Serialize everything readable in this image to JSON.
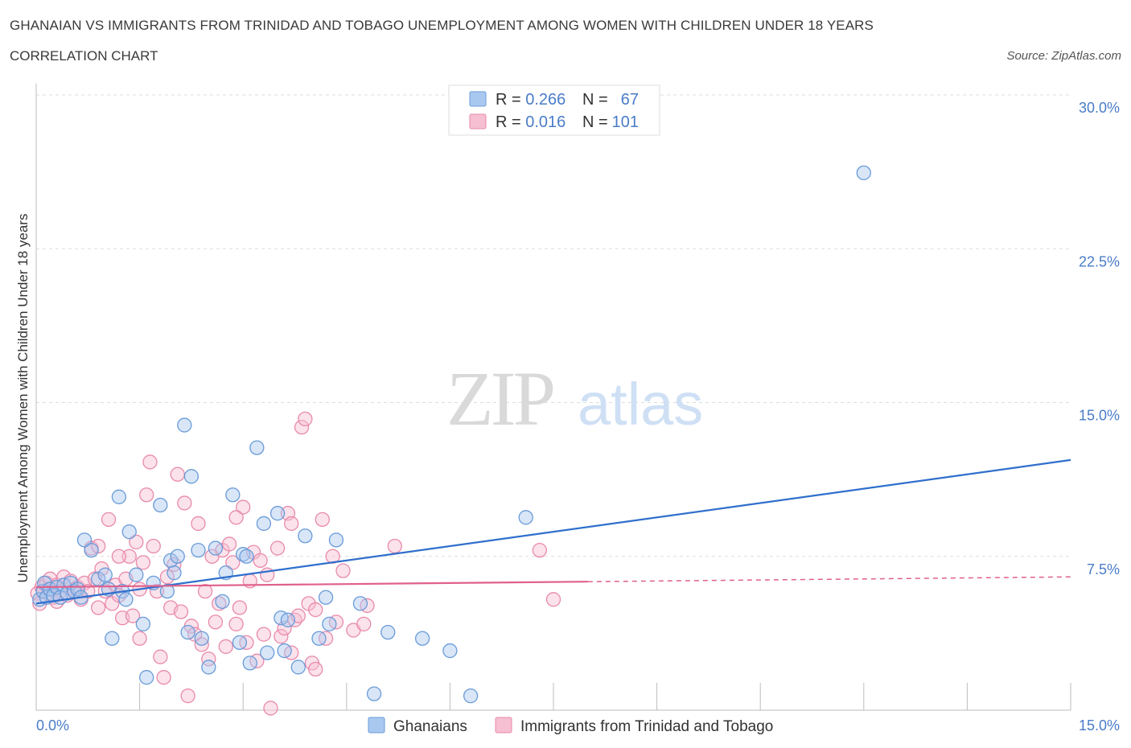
{
  "header": {
    "title": "GHANAIAN VS IMMIGRANTS FROM TRINIDAD AND TOBAGO UNEMPLOYMENT AMONG WOMEN WITH CHILDREN UNDER 18 YEARS",
    "subtitle": "CORRELATION CHART",
    "source": "Source: ZipAtlas.com"
  },
  "watermark": {
    "zip": "ZIP",
    "atlas": "atlas"
  },
  "colors": {
    "ghanaians_fill": "#a9c8f0",
    "ghanaians_stroke": "#6a9bd8",
    "ghanaians_line": "#2f6fcc",
    "trinidad_fill": "#f6bfd2",
    "trinidad_stroke": "#e98aab",
    "trinidad_line": "#e0608c",
    "axis_text": "#4a7cc9"
  },
  "chart_data": {
    "type": "scatter",
    "ylabel": "Unemployment Among Women with Children Under 18 years",
    "xlim": [
      0,
      15
    ],
    "ylim": [
      0,
      30
    ],
    "x_tick_labels": [
      "0.0%",
      "15.0%"
    ],
    "y_ticks": [
      7.5,
      15.0,
      22.5,
      30.0
    ],
    "y_tick_labels": [
      "7.5%",
      "15.0%",
      "22.5%",
      "30.0%"
    ],
    "grid": true,
    "legend": {
      "placement": "top-center",
      "rows": [
        {
          "r_label": "R = ",
          "r_value": "0.266",
          "n_label": "N = ",
          "n_value": "67"
        },
        {
          "r_label": "R = ",
          "r_value": "0.016",
          "n_label": "N = ",
          "n_value": "101"
        }
      ]
    },
    "series": [
      {
        "name": "Ghanaians",
        "trend": {
          "x": [
            0,
            15
          ],
          "y": [
            5.2,
            12.2
          ],
          "solid_to": 15
        },
        "points": [
          [
            0.05,
            5.4
          ],
          [
            0.1,
            5.8
          ],
          [
            0.12,
            6.2
          ],
          [
            0.15,
            5.5
          ],
          [
            0.2,
            5.9
          ],
          [
            0.25,
            5.6
          ],
          [
            0.3,
            6.0
          ],
          [
            0.35,
            5.5
          ],
          [
            0.4,
            6.1
          ],
          [
            0.45,
            5.7
          ],
          [
            0.5,
            6.2
          ],
          [
            0.55,
            5.8
          ],
          [
            0.6,
            5.9
          ],
          [
            0.65,
            5.5
          ],
          [
            0.7,
            8.3
          ],
          [
            0.8,
            7.8
          ],
          [
            0.9,
            6.4
          ],
          [
            1.0,
            6.6
          ],
          [
            1.05,
            5.9
          ],
          [
            1.1,
            3.5
          ],
          [
            1.2,
            10.4
          ],
          [
            1.25,
            5.8
          ],
          [
            1.3,
            5.4
          ],
          [
            1.35,
            8.7
          ],
          [
            1.45,
            6.6
          ],
          [
            1.55,
            4.2
          ],
          [
            1.6,
            1.6
          ],
          [
            1.7,
            6.2
          ],
          [
            1.8,
            10.0
          ],
          [
            1.9,
            5.8
          ],
          [
            1.95,
            7.3
          ],
          [
            2.0,
            6.7
          ],
          [
            2.05,
            7.5
          ],
          [
            2.15,
            13.9
          ],
          [
            2.2,
            3.8
          ],
          [
            2.25,
            11.4
          ],
          [
            2.35,
            7.8
          ],
          [
            2.4,
            3.5
          ],
          [
            2.5,
            2.1
          ],
          [
            2.6,
            7.9
          ],
          [
            2.7,
            5.3
          ],
          [
            2.75,
            6.7
          ],
          [
            2.85,
            10.5
          ],
          [
            2.95,
            3.3
          ],
          [
            3.0,
            7.6
          ],
          [
            3.1,
            2.3
          ],
          [
            3.05,
            7.5
          ],
          [
            3.2,
            12.8
          ],
          [
            3.3,
            9.1
          ],
          [
            3.35,
            2.8
          ],
          [
            3.5,
            9.6
          ],
          [
            3.55,
            4.5
          ],
          [
            3.6,
            2.9
          ],
          [
            3.65,
            4.4
          ],
          [
            3.8,
            2.1
          ],
          [
            3.9,
            8.5
          ],
          [
            4.1,
            3.5
          ],
          [
            4.2,
            5.5
          ],
          [
            4.25,
            4.2
          ],
          [
            4.35,
            8.3
          ],
          [
            4.7,
            5.2
          ],
          [
            4.9,
            0.8
          ],
          [
            5.1,
            3.8
          ],
          [
            5.6,
            3.5
          ],
          [
            6.0,
            2.9
          ],
          [
            6.3,
            0.7
          ],
          [
            7.1,
            9.4
          ],
          [
            12.0,
            26.2
          ]
        ]
      },
      {
        "name": "Immigrants from Trinidad and Tobago",
        "trend": {
          "x": [
            0,
            15
          ],
          "y": [
            6.0,
            6.5
          ],
          "solid_to": 8
        },
        "points": [
          [
            0.02,
            5.7
          ],
          [
            0.05,
            5.2
          ],
          [
            0.08,
            6.0
          ],
          [
            0.1,
            5.8
          ],
          [
            0.15,
            6.2
          ],
          [
            0.18,
            5.9
          ],
          [
            0.2,
            6.4
          ],
          [
            0.25,
            5.5
          ],
          [
            0.3,
            6.1
          ],
          [
            0.35,
            5.8
          ],
          [
            0.4,
            6.5
          ],
          [
            0.45,
            5.6
          ],
          [
            0.5,
            6.3
          ],
          [
            0.55,
            5.9
          ],
          [
            0.6,
            6.0
          ],
          [
            0.65,
            5.4
          ],
          [
            0.7,
            6.2
          ],
          [
            0.75,
            5.8
          ],
          [
            0.8,
            7.9
          ],
          [
            0.85,
            6.4
          ],
          [
            0.9,
            5.0
          ],
          [
            0.95,
            6.9
          ],
          [
            1.0,
            5.8
          ],
          [
            1.05,
            9.3
          ],
          [
            1.1,
            5.2
          ],
          [
            1.15,
            6.1
          ],
          [
            1.2,
            5.6
          ],
          [
            1.25,
            4.5
          ],
          [
            1.3,
            6.4
          ],
          [
            1.35,
            7.5
          ],
          [
            1.4,
            4.6
          ],
          [
            1.45,
            8.2
          ],
          [
            1.5,
            5.9
          ],
          [
            1.55,
            7.2
          ],
          [
            1.6,
            10.5
          ],
          [
            1.65,
            12.1
          ],
          [
            1.7,
            8.0
          ],
          [
            1.75,
            5.8
          ],
          [
            1.8,
            2.6
          ],
          [
            1.85,
            1.6
          ],
          [
            1.9,
            6.5
          ],
          [
            1.95,
            5.0
          ],
          [
            2.0,
            7.1
          ],
          [
            2.05,
            11.5
          ],
          [
            2.1,
            4.8
          ],
          [
            2.15,
            10.1
          ],
          [
            2.2,
            0.7
          ],
          [
            2.25,
            4.1
          ],
          [
            2.3,
            3.7
          ],
          [
            2.35,
            9.1
          ],
          [
            2.4,
            3.2
          ],
          [
            2.45,
            5.8
          ],
          [
            2.5,
            2.5
          ],
          [
            2.55,
            7.5
          ],
          [
            2.6,
            4.3
          ],
          [
            2.65,
            5.2
          ],
          [
            2.7,
            7.8
          ],
          [
            2.75,
            3.1
          ],
          [
            2.8,
            8.1
          ],
          [
            2.85,
            7.2
          ],
          [
            2.9,
            4.2
          ],
          [
            2.95,
            5.0
          ],
          [
            3.0,
            9.9
          ],
          [
            3.05,
            3.3
          ],
          [
            3.1,
            6.3
          ],
          [
            3.15,
            7.7
          ],
          [
            3.2,
            2.4
          ],
          [
            3.25,
            7.3
          ],
          [
            3.3,
            3.7
          ],
          [
            3.35,
            6.6
          ],
          [
            3.4,
            0.1
          ],
          [
            3.5,
            7.9
          ],
          [
            3.55,
            3.6
          ],
          [
            3.6,
            4.0
          ],
          [
            3.65,
            9.6
          ],
          [
            3.7,
            9.1
          ],
          [
            3.75,
            4.4
          ],
          [
            3.8,
            4.6
          ],
          [
            3.85,
            13.8
          ],
          [
            3.9,
            14.2
          ],
          [
            3.95,
            5.2
          ],
          [
            4.0,
            2.3
          ],
          [
            4.05,
            4.9
          ],
          [
            4.15,
            9.3
          ],
          [
            4.2,
            3.5
          ],
          [
            4.3,
            7.5
          ],
          [
            4.35,
            4.3
          ],
          [
            4.45,
            6.8
          ],
          [
            4.6,
            3.9
          ],
          [
            4.75,
            4.2
          ],
          [
            4.8,
            5.1
          ],
          [
            5.2,
            8.0
          ],
          [
            4.05,
            2.0
          ],
          [
            3.7,
            2.8
          ],
          [
            2.9,
            9.4
          ],
          [
            1.5,
            3.5
          ],
          [
            0.9,
            8.0
          ],
          [
            7.3,
            7.8
          ],
          [
            7.5,
            5.4
          ],
          [
            0.3,
            5.3
          ],
          [
            1.2,
            7.5
          ]
        ]
      }
    ]
  },
  "bottom_legend": {
    "items": [
      {
        "label": "Ghanaians"
      },
      {
        "label": "Immigrants from Trinidad and Tobago"
      }
    ]
  }
}
